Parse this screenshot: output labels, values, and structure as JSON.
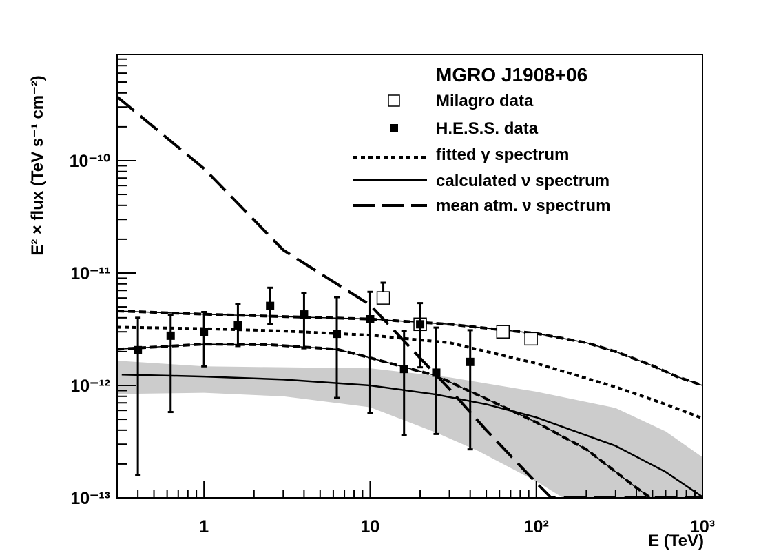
{
  "chart_data": {
    "type": "scatter",
    "title": "",
    "xlabel": "E (TeV)",
    "ylabel": "E² × flux (TeV s⁻¹ cm⁻²)",
    "xscale": "log",
    "yscale": "log",
    "xlim": [
      0.3,
      1000
    ],
    "ylim": [
      1e-13,
      8.8e-10
    ],
    "grid": false,
    "legend_placement": "top-right",
    "legend_title": "MGRO J1908+06",
    "x_ticks": [
      {
        "value": 1,
        "label": "1"
      },
      {
        "value": 10,
        "label": "10"
      },
      {
        "value": 100,
        "label": "10²"
      },
      {
        "value": 1000,
        "label": "10³"
      }
    ],
    "y_ticks": [
      {
        "value": 1e-13,
        "label": "10⁻¹³"
      },
      {
        "value": 1e-12,
        "label": "10⁻¹²"
      },
      {
        "value": 1e-11,
        "label": "10⁻¹¹"
      },
      {
        "value": 1e-10,
        "label": "10⁻¹⁰"
      }
    ],
    "band": {
      "color": "#cccccc",
      "upper": [
        [
          0.3,
          1.66e-12
        ],
        [
          1,
          1.48e-12
        ],
        [
          3,
          1.45e-12
        ],
        [
          10,
          1.42e-12
        ],
        [
          30,
          1.18e-12
        ],
        [
          100,
          8.8e-13
        ],
        [
          300,
          6.3e-13
        ],
        [
          600,
          3.9e-13
        ],
        [
          1000,
          2.3e-13
        ]
      ],
      "lower": [
        [
          0.3,
          8.4e-13
        ],
        [
          1,
          8.6e-13
        ],
        [
          3,
          8e-13
        ],
        [
          10,
          6.4e-13
        ],
        [
          25,
          3.8e-13
        ],
        [
          45,
          2.6e-13
        ],
        [
          100,
          1.4e-13
        ],
        [
          145,
          1e-13
        ],
        [
          1000,
          1e-13
        ]
      ]
    },
    "series": [
      {
        "name": "Milagro data",
        "kind": "markers",
        "marker": "open-square",
        "points": [
          {
            "x": 12,
            "y": 6e-12,
            "err_hi": 8.2e-12,
            "err_lo": 6e-12
          },
          {
            "x": 20,
            "y": 3.5e-12
          },
          {
            "x": 63,
            "y": 3e-12
          },
          {
            "x": 93,
            "y": 2.6e-12
          }
        ]
      },
      {
        "name": "H.E.S.S. data",
        "kind": "markers",
        "marker": "filled-square",
        "points": [
          {
            "x": 0.4,
            "y": 2.06e-12,
            "err_hi": 4e-12,
            "err_lo": 1.6e-13
          },
          {
            "x": 0.63,
            "y": 2.77e-12,
            "err_hi": 4.2e-12,
            "err_lo": 5.8e-13
          },
          {
            "x": 1.0,
            "y": 2.97e-12,
            "err_hi": 4.5e-12,
            "err_lo": 1.48e-12
          },
          {
            "x": 1.6,
            "y": 3.42e-12,
            "err_hi": 5.3e-12,
            "err_lo": 2.24e-12
          },
          {
            "x": 2.5,
            "y": 5.1e-12,
            "err_hi": 7.4e-12,
            "err_lo": 3.5e-12
          },
          {
            "x": 4.0,
            "y": 4.28e-12,
            "err_hi": 6.6e-12,
            "err_lo": 2.14e-12
          },
          {
            "x": 6.3,
            "y": 2.88e-12,
            "err_hi": 6.1e-12,
            "err_lo": 7.75e-13
          },
          {
            "x": 10,
            "y": 3.88e-12,
            "err_hi": 6.8e-12,
            "err_lo": 5.7e-13
          },
          {
            "x": 16,
            "y": 1.4e-12,
            "err_hi": 3.05e-12,
            "err_lo": 3.6e-13
          },
          {
            "x": 20,
            "y": 3.5e-12,
            "err_hi": 5.4e-12,
            "err_lo": 1.45e-12
          },
          {
            "x": 25,
            "y": 1.3e-12,
            "err_hi": 3.27e-12,
            "err_lo": 3.7e-13
          },
          {
            "x": 40,
            "y": 1.62e-12,
            "err_hi": 3.1e-12,
            "err_lo": 2.7e-13
          }
        ]
      },
      {
        "name": "fitted γ spectrum",
        "kind": "line",
        "style": "dotted",
        "points": [
          [
            0.3,
            3.3e-12
          ],
          [
            1,
            3.2e-12
          ],
          [
            3,
            3.05e-12
          ],
          [
            10,
            2.8e-12
          ],
          [
            30,
            2.4e-12
          ],
          [
            100,
            1.57e-12
          ],
          [
            300,
            9.7e-13
          ],
          [
            600,
            6.8e-13
          ],
          [
            1000,
            5.1e-13
          ]
        ]
      },
      {
        "name": "calculated ν spectrum",
        "kind": "line",
        "style": "solid",
        "points": [
          [
            0.32,
            1.25e-12
          ],
          [
            1,
            1.2e-12
          ],
          [
            3,
            1.13e-12
          ],
          [
            10,
            1e-12
          ],
          [
            25,
            8.3e-13
          ],
          [
            50,
            6.8e-13
          ],
          [
            100,
            5.2e-13
          ],
          [
            300,
            2.9e-13
          ],
          [
            600,
            1.7e-13
          ],
          [
            1000,
            1.02e-13
          ]
        ]
      },
      {
        "name": "mean atm. ν spectrum",
        "kind": "line",
        "style": "long-dash",
        "points": [
          [
            0.3,
            3.7e-10
          ],
          [
            1,
            8.5e-11
          ],
          [
            3,
            1.6e-11
          ],
          [
            10,
            5.2e-12
          ],
          [
            20,
            1.75e-12
          ],
          [
            30,
            9.3e-13
          ],
          [
            50,
            4e-13
          ],
          [
            100,
            1.36e-13
          ],
          [
            123,
            1e-13
          ],
          [
            1000,
            1e-13
          ]
        ]
      },
      {
        "kind": "line",
        "style": "solid-dashed",
        "points": [
          [
            0.3,
            4.6e-12
          ],
          [
            1,
            4.3e-12
          ],
          [
            3,
            4.1e-12
          ],
          [
            10,
            3.9e-12
          ],
          [
            30,
            3.5e-12
          ],
          [
            100,
            2.9e-12
          ],
          [
            200,
            2.4e-12
          ],
          [
            300,
            2e-12
          ],
          [
            500,
            1.5e-12
          ],
          [
            700,
            1.2e-12
          ],
          [
            1000,
            1e-12
          ]
        ]
      },
      {
        "kind": "line",
        "style": "solid-dashed",
        "points": [
          [
            0.3,
            2.1e-12
          ],
          [
            1,
            2.33e-12
          ],
          [
            2.5,
            2.3e-12
          ],
          [
            6.3,
            2.1e-12
          ],
          [
            10,
            1.76e-12
          ],
          [
            25,
            1.22e-12
          ],
          [
            50,
            7.6e-13
          ],
          [
            100,
            4.7e-13
          ],
          [
            200,
            2.7e-13
          ],
          [
            400,
            1.23e-13
          ],
          [
            486,
            1e-13
          ]
        ]
      }
    ]
  }
}
